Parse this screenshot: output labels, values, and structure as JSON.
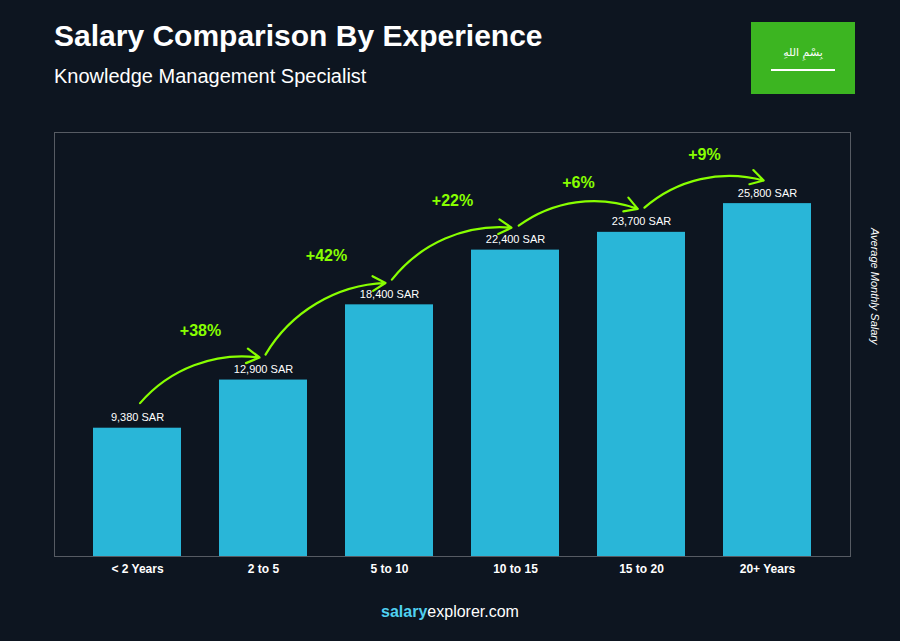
{
  "chart_data": {
    "type": "bar",
    "title": "Salary Comparison By Experience",
    "subtitle": "Knowledge Management Specialist",
    "categories": [
      "< 2 Years",
      "2 to 5",
      "5 to 10",
      "10 to 15",
      "15 to 20",
      "20+ Years"
    ],
    "values": [
      9380,
      12900,
      18400,
      22400,
      23700,
      25800
    ],
    "value_labels": [
      "9,380 SAR",
      "12,900 SAR",
      "18,400 SAR",
      "22,400 SAR",
      "23,700 SAR",
      "25,800 SAR"
    ],
    "data_labels": true,
    "color": "#29B6D8",
    "ylabel": "Average Monthly Salary",
    "ylim": [
      0,
      31000
    ],
    "tick_labels": "x",
    "grid": false,
    "annotations": [
      {
        "text": "+38%",
        "from": "< 2 Years",
        "to": "2 to 5",
        "color": "#88FF00"
      },
      {
        "text": "+42%",
        "from": "2 to 5",
        "to": "5 to 10",
        "color": "#88FF00"
      },
      {
        "text": "+22%",
        "from": "5 to 10",
        "to": "10 to 15",
        "color": "#88FF00"
      },
      {
        "text": "+6%",
        "from": "10 to 15",
        "to": "15 to 20",
        "color": "#88FF00"
      },
      {
        "text": "+9%",
        "from": "15 to 20",
        "to": "20+ Years",
        "color": "#88FF00"
      },
      {
        "text": "بِسْمِ اللهِ"
      }
    ],
    "caption": [
      {
        "text": "salary",
        "color": "#50D0F0"
      },
      {
        "text": "explorer.com"
      }
    ]
  }
}
